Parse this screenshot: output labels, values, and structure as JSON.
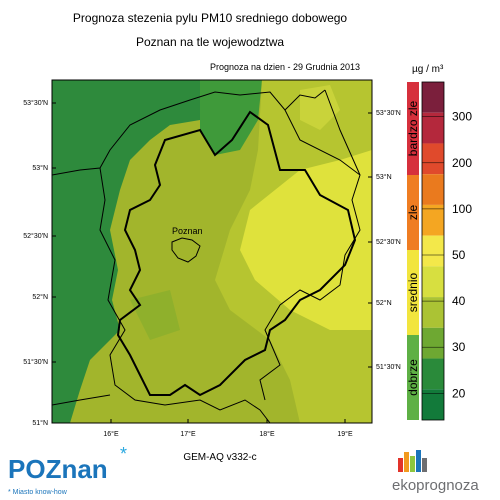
{
  "header": {
    "title_line1": "Prognoza stezenia pylu PM10 sredniego dobowego",
    "title_line2": "Poznan na tle wojewodztwa"
  },
  "map": {
    "date_label": "Prognoza na dzien -  29 Grudnia 2013",
    "city_label": "Poznan",
    "lat_labels_left": [
      "53°30'N",
      "53°N",
      "52°30'N",
      "52°N",
      "51°30'N",
      "51°N"
    ],
    "lat_labels_right": [
      "53°30'N",
      "53°N",
      "52°30'N",
      "52°N",
      "51°30'N"
    ],
    "lon_labels": [
      "16°E",
      "17°E",
      "18°E",
      "19°E"
    ]
  },
  "legend": {
    "unit": "µg / m³",
    "categories": [
      "bardzo zle",
      "zle",
      "srednio",
      "dobrze"
    ],
    "ticks": [
      300,
      200,
      100,
      50,
      40,
      30,
      20
    ]
  },
  "footer": {
    "model": "GEM-AQ v332-c",
    "logo_left": "POZnan",
    "logo_tagline": "* Miasto know-how",
    "logo_right": "ekoprognoza"
  }
}
